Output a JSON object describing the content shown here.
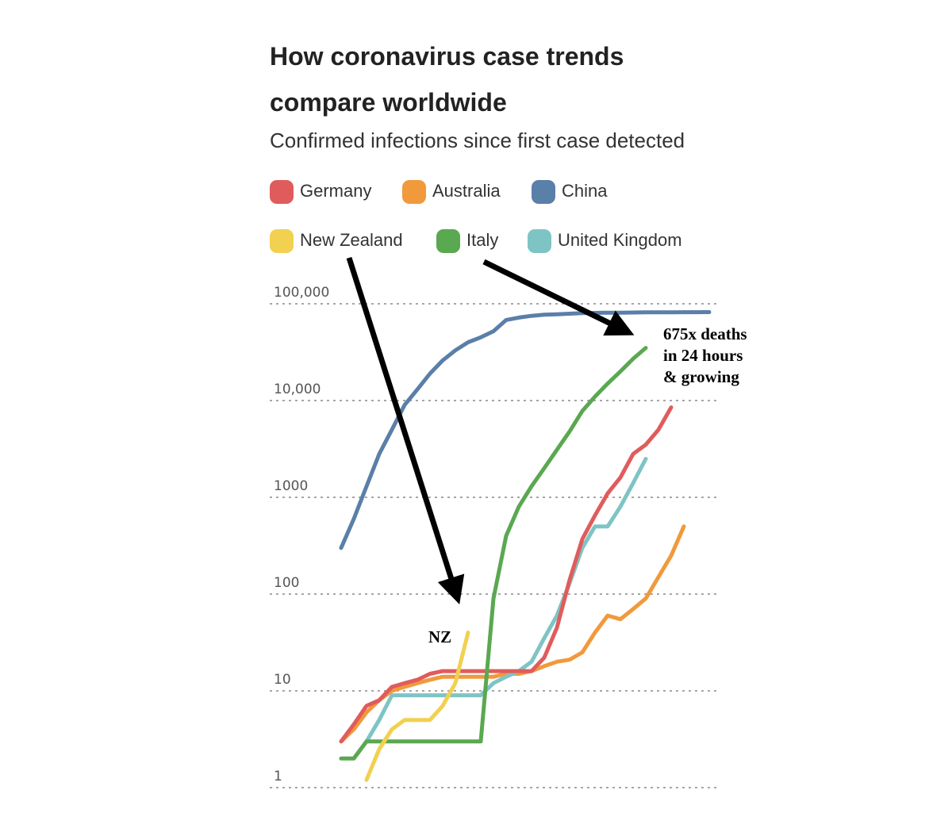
{
  "chart_data": {
    "type": "line",
    "title": "How coronavirus case trends compare worldwide",
    "subtitle": "Confirmed infections since first case detected",
    "log_scale": true,
    "grid": true,
    "ylim": [
      1,
      150000
    ],
    "yticks": [
      1,
      10,
      100,
      1000,
      {
        "value": 10000,
        "label": "10,000"
      },
      {
        "value": 100000,
        "label": "100,000"
      }
    ],
    "series": [
      {
        "name": "Germany",
        "color": "#e05c5c",
        "values": [
          3,
          4.5,
          7,
          8,
          11,
          12,
          13,
          15,
          16,
          16,
          16,
          16,
          16,
          16,
          16,
          16,
          22,
          45,
          140,
          370,
          650,
          1100,
          1600,
          2800,
          3500,
          5000,
          8500,
          null,
          null,
          null
        ]
      },
      {
        "name": "Australia",
        "color": "#f09a3c",
        "values": [
          3,
          4,
          6,
          8,
          10,
          11,
          12,
          13,
          14,
          14,
          14,
          14,
          14,
          15,
          15,
          16,
          18,
          20,
          21,
          25,
          40,
          60,
          55,
          70,
          90,
          150,
          250,
          500,
          null,
          null
        ]
      },
      {
        "name": "China",
        "color": "#5a7fa8",
        "values": [
          300,
          600,
          1300,
          2800,
          5000,
          9000,
          13000,
          19000,
          26000,
          33000,
          40000,
          45000,
          52000,
          68000,
          72000,
          75000,
          77000,
          78000,
          79000,
          80000,
          80500,
          81000,
          81000,
          81300,
          81500,
          81600,
          81700,
          81800,
          81900,
          82000
        ]
      },
      {
        "name": "New Zealand",
        "color": "#f2d050",
        "values": [
          null,
          null,
          1.2,
          2.5,
          4,
          5,
          5,
          5,
          7,
          12,
          40,
          null,
          null,
          null,
          null,
          null,
          null,
          null,
          null,
          null,
          null,
          null,
          null,
          null,
          null,
          null,
          null,
          null,
          null,
          null
        ]
      },
      {
        "name": "Italy",
        "color": "#5aa850",
        "values": [
          2,
          2,
          3,
          3,
          3,
          3,
          3,
          3,
          3,
          3,
          3,
          3,
          90,
          400,
          800,
          1300,
          2000,
          3100,
          4800,
          7800,
          11000,
          15000,
          20000,
          27000,
          35000,
          null,
          null,
          null,
          null,
          null
        ]
      },
      {
        "name": "United Kingdom",
        "color": "#7fc4c4",
        "values": [
          null,
          2,
          3,
          5,
          9,
          9,
          9,
          9,
          9,
          9,
          9,
          9,
          12,
          14,
          16,
          20,
          35,
          60,
          130,
          300,
          500,
          500,
          800,
          1400,
          2500,
          null,
          null,
          null,
          null,
          null
        ]
      }
    ],
    "annotations": [
      {
        "lines": [
          "675x deaths",
          "in 24 hours",
          "& growing"
        ]
      },
      {
        "lines": [
          "NZ"
        ]
      }
    ]
  }
}
